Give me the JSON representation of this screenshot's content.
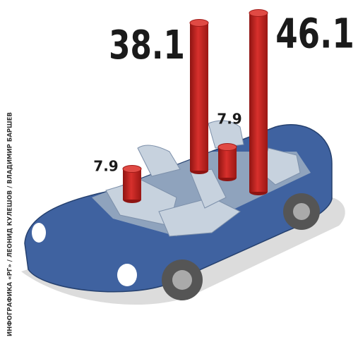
{
  "chart_data": {
    "type": "bar",
    "categories": [
      null,
      null,
      null,
      null
    ],
    "values": [
      7.9,
      38.1,
      7.9,
      46.1
    ],
    "color": "#c8201e",
    "credit": "ИНФОГРАФИКА «РГ» / ЛЕОНИД КУЛЕШОВ / ВЛАДИМИР БАРШЕВ"
  }
}
